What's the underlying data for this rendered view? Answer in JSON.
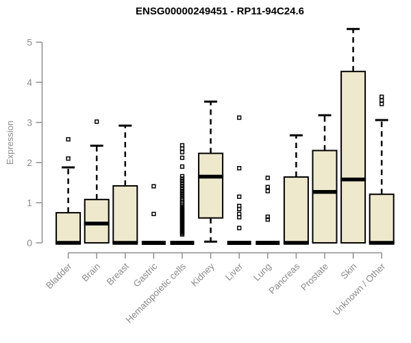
{
  "chart_data": {
    "type": "box",
    "title": "ENSG00000249451 - RP11-94C24.6",
    "ylabel": "Expression",
    "xlabel": "",
    "ylim": [
      0,
      5
    ],
    "y_ticks": [
      0,
      1,
      2,
      3,
      4,
      5
    ],
    "grid": false,
    "legend": false,
    "categories": [
      "Bladder",
      "Brain",
      "Breast",
      "Gastric",
      "Hematopoietic cells",
      "Kidney",
      "Liver",
      "Lung",
      "Pancreas",
      "Prostate",
      "Skin",
      "Unknown / Other"
    ],
    "series": [
      {
        "name": "Bladder",
        "q1": 0,
        "median": 0,
        "q3": 0.75,
        "whisker_low": 0,
        "whisker_high": 1.88,
        "outliers": [
          2.1,
          2.58
        ]
      },
      {
        "name": "Brain",
        "q1": 0,
        "median": 0.48,
        "q3": 1.08,
        "whisker_low": 0,
        "whisker_high": 2.42,
        "outliers": [
          3.02
        ]
      },
      {
        "name": "Breast",
        "q1": 0,
        "median": 0,
        "q3": 1.42,
        "whisker_low": 0,
        "whisker_high": 2.92,
        "outliers": []
      },
      {
        "name": "Gastric",
        "q1": 0,
        "median": 0,
        "q3": 0,
        "whisker_low": 0,
        "whisker_high": 0,
        "outliers": [
          0.72,
          1.41
        ]
      },
      {
        "name": "Hematopoietic cells",
        "q1": 0,
        "median": 0,
        "q3": 0,
        "whisker_low": 0,
        "whisker_high": 0,
        "outliers": [
          0.21,
          0.24,
          0.27,
          0.3,
          0.33,
          0.36,
          0.39,
          0.42,
          0.45,
          0.48,
          0.51,
          0.54,
          0.57,
          0.6,
          0.63,
          0.66,
          0.69,
          0.72,
          0.75,
          0.78,
          0.81,
          0.84,
          0.87,
          0.9,
          0.94,
          0.98,
          1.02,
          1.06,
          1.1,
          1.15,
          1.2,
          1.25,
          1.3,
          1.36,
          1.42,
          1.48,
          1.54,
          1.6,
          1.66,
          1.9,
          2.12,
          2.26,
          2.35,
          2.43
        ]
      },
      {
        "name": "Kidney",
        "q1": 0.62,
        "median": 1.65,
        "q3": 2.23,
        "whisker_low": 0.03,
        "whisker_high": 3.52,
        "outliers": []
      },
      {
        "name": "Liver",
        "q1": 0,
        "median": 0,
        "q3": 0,
        "whisker_low": 0,
        "whisker_high": 0,
        "outliers": [
          0.37,
          0.64,
          0.72,
          0.84,
          0.92,
          1.15,
          1.86,
          3.12
        ]
      },
      {
        "name": "Lung",
        "q1": 0,
        "median": 0,
        "q3": 0,
        "whisker_low": 0,
        "whisker_high": 0,
        "outliers": [
          0.58,
          0.65,
          1.29,
          1.39,
          1.62
        ]
      },
      {
        "name": "Pancreas",
        "q1": 0,
        "median": 0,
        "q3": 1.64,
        "whisker_low": 0,
        "whisker_high": 2.68,
        "outliers": []
      },
      {
        "name": "Prostate",
        "q1": 0,
        "median": 1.27,
        "q3": 2.3,
        "whisker_low": 0,
        "whisker_high": 3.18,
        "outliers": []
      },
      {
        "name": "Skin",
        "q1": 0,
        "median": 1.58,
        "q3": 4.27,
        "whisker_low": 0,
        "whisker_high": 5.33,
        "outliers": []
      },
      {
        "name": "Unknown / Other",
        "q1": 0,
        "median": 0,
        "q3": 1.21,
        "whisker_low": 0,
        "whisker_high": 3.06,
        "outliers": [
          3.46,
          3.55,
          3.64
        ]
      }
    ],
    "colors": {
      "box_fill": "#EEE8CD",
      "box_border": "#000000",
      "axis": "#8c8c8c",
      "label": "#8a8a8a",
      "title": "#000000",
      "background": "#ffffff"
    }
  }
}
